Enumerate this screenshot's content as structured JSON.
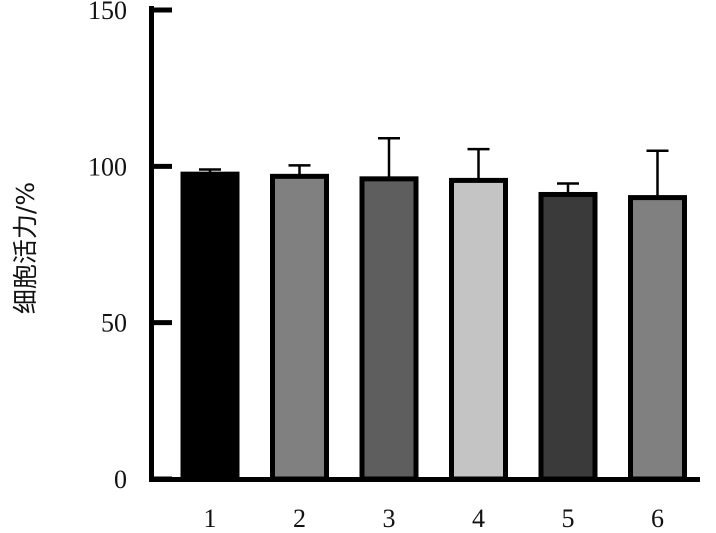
{
  "chart_data": {
    "type": "bar",
    "categories": [
      "1",
      "2",
      "3",
      "4",
      "5",
      "6"
    ],
    "values": [
      97.5,
      96.8,
      96.0,
      95.5,
      91.0,
      90.0
    ],
    "errors": [
      1.5,
      3.5,
      13.0,
      10.0,
      3.5,
      15.0
    ],
    "colors": [
      "#000000",
      "#808080",
      "#5e5e5e",
      "#c4c4c4",
      "#3a3a3a",
      "#808080"
    ],
    "edge_color": "#000000",
    "ylabel": "细胞活力/%",
    "xlabel": "",
    "ylim": [
      0,
      150
    ],
    "yticks": [
      0,
      50,
      100,
      150
    ],
    "ytick_labels": [
      "0",
      "50",
      "100",
      "150"
    ],
    "grid": false
  }
}
